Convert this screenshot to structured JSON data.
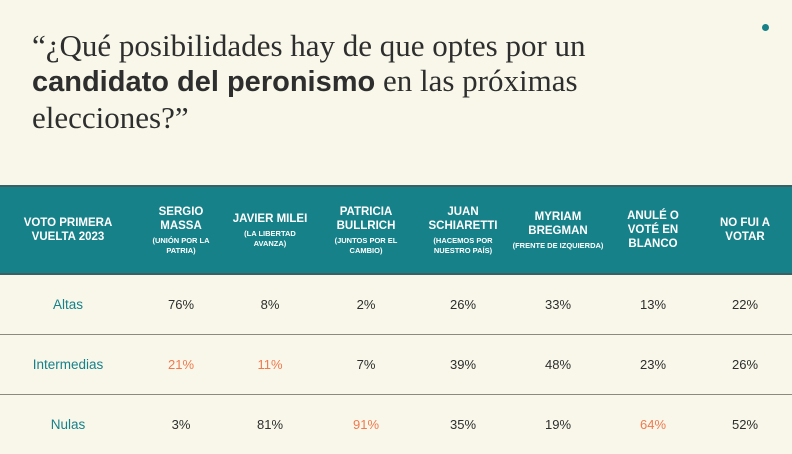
{
  "title": {
    "part1": "“¿Qué posibilidades hay de que optes por un ",
    "bold": "candidato del peronismo",
    "part2": " en las próximas elecciones?”"
  },
  "colors": {
    "accent": "#17818a",
    "highlight": "#f07a4f",
    "background": "#f8f7ea"
  },
  "table": {
    "columns": [
      {
        "name": "VOTO PRIMERA VUELTA 2023",
        "sub": ""
      },
      {
        "name": "SERGIO MASSA",
        "sub": "(UNIÓN POR LA PATRIA)"
      },
      {
        "name": "JAVIER MILEI",
        "sub": "(LA LIBERTAD AVANZA)"
      },
      {
        "name": "PATRICIA BULLRICH",
        "sub": "(JUNTOS POR EL CAMBIO)"
      },
      {
        "name": "JUAN SCHIARETTI",
        "sub": "(HACEMOS POR NUESTRO PAÍS)"
      },
      {
        "name": "MYRIAM BREGMAN",
        "sub": "(FRENTE DE IZQUIERDA)"
      },
      {
        "name": "ANULÉ O VOTÉ EN BLANCO",
        "sub": ""
      },
      {
        "name": "NO FUI A VOTAR",
        "sub": ""
      }
    ],
    "rows": [
      {
        "label": "Altas",
        "values": [
          "76%",
          "8%",
          "2%",
          "26%",
          "33%",
          "13%",
          "22%"
        ],
        "highlight": [
          false,
          false,
          false,
          false,
          false,
          false,
          false
        ]
      },
      {
        "label": "Intermedias",
        "values": [
          "21%",
          "11%",
          "7%",
          "39%",
          "48%",
          "23%",
          "26%"
        ],
        "highlight": [
          true,
          true,
          false,
          false,
          false,
          false,
          false
        ]
      },
      {
        "label": "Nulas",
        "values": [
          "3%",
          "81%",
          "91%",
          "35%",
          "19%",
          "64%",
          "52%"
        ],
        "highlight": [
          false,
          false,
          true,
          false,
          false,
          true,
          false
        ]
      }
    ]
  }
}
